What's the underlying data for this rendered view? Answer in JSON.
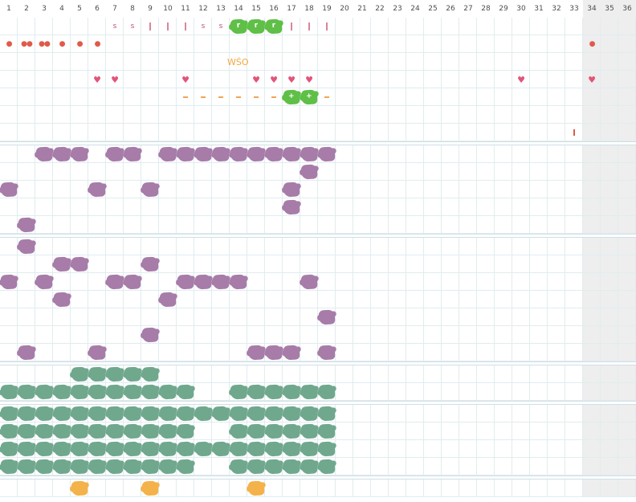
{
  "columns": [
    "1",
    "2",
    "3",
    "4",
    "5",
    "6",
    "7",
    "8",
    "9",
    "10",
    "11",
    "12",
    "13",
    "14",
    "15",
    "16",
    "17",
    "18",
    "19",
    "20",
    "21",
    "22",
    "23",
    "24",
    "25",
    "26",
    "27",
    "28",
    "29",
    "30",
    "31",
    "32",
    "33",
    "34",
    "35",
    "36"
  ],
  "gray_from_column": 34,
  "colors": {
    "purple": "#a77ca9",
    "teal": "#70a88d",
    "orange": "#f4b24a",
    "green": "#5fbf47",
    "heart": "#e25479",
    "drop": "#e05a4a",
    "dash": "#f2a35a",
    "grid": "#e1ecf0"
  },
  "wso_label": "WŚO",
  "row_letters": {
    "row1": [
      {
        "col": 7,
        "type": "text",
        "text": "s"
      },
      {
        "col": 8,
        "type": "text",
        "text": "s"
      },
      {
        "col": 9,
        "type": "bar"
      },
      {
        "col": 10,
        "type": "bar"
      },
      {
        "col": 11,
        "type": "bar"
      },
      {
        "col": 12,
        "type": "text",
        "text": "s"
      },
      {
        "col": 13,
        "type": "text",
        "text": "s"
      },
      {
        "col": 14,
        "type": "green",
        "text": "r"
      },
      {
        "col": 15,
        "type": "green",
        "text": "r"
      },
      {
        "col": 16,
        "type": "green",
        "text": "r"
      },
      {
        "col": 17,
        "type": "bar"
      },
      {
        "col": 18,
        "type": "bar"
      },
      {
        "col": 19,
        "type": "bar"
      }
    ],
    "row2": [
      {
        "col": 1,
        "type": "drop",
        "text": "●"
      },
      {
        "col": 2,
        "type": "drop",
        "text": "●●"
      },
      {
        "col": 3,
        "type": "drop",
        "text": "●●"
      },
      {
        "col": 4,
        "type": "drop",
        "text": "●"
      },
      {
        "col": 5,
        "type": "drop",
        "text": "●"
      },
      {
        "col": 6,
        "type": "drop",
        "text": "●"
      },
      {
        "col": 34,
        "type": "drop",
        "text": "●"
      }
    ],
    "row4": [
      {
        "col": 6,
        "type": "heart",
        "text": "♥"
      },
      {
        "col": 7,
        "type": "heart",
        "text": "♥"
      },
      {
        "col": 11,
        "type": "heart",
        "text": "♥"
      },
      {
        "col": 15,
        "type": "heart",
        "text": "♥"
      },
      {
        "col": 16,
        "type": "heart",
        "text": "♥"
      },
      {
        "col": 17,
        "type": "heart",
        "text": "♥"
      },
      {
        "col": 18,
        "type": "heart",
        "text": "♥"
      },
      {
        "col": 30,
        "type": "heart",
        "text": "♥"
      },
      {
        "col": 34,
        "type": "heart",
        "text": "♥"
      }
    ],
    "row5": [
      {
        "col": 11,
        "type": "dash"
      },
      {
        "col": 12,
        "type": "dash"
      },
      {
        "col": 13,
        "type": "dash"
      },
      {
        "col": 14,
        "type": "dash"
      },
      {
        "col": 15,
        "type": "dash"
      },
      {
        "col": 16,
        "type": "dash"
      },
      {
        "col": 17,
        "type": "green",
        "text": "+"
      },
      {
        "col": 18,
        "type": "green",
        "text": "+"
      },
      {
        "col": 19,
        "type": "dash"
      }
    ],
    "row7": [
      {
        "col": 33,
        "type": "tick"
      }
    ]
  },
  "sections": [
    {
      "rows": [
        {
          "color": "purple",
          "cols": [
            3,
            4,
            5,
            7,
            8,
            10,
            11,
            12,
            13,
            14,
            15,
            16,
            17,
            18,
            19
          ]
        },
        {
          "color": "purple",
          "cols": [
            18
          ]
        },
        {
          "color": "purple",
          "cols": [
            1,
            6,
            9,
            17
          ]
        },
        {
          "color": "purple",
          "cols": [
            17
          ]
        },
        {
          "color": "purple",
          "cols": [
            2
          ]
        }
      ]
    },
    {
      "rows": [
        {
          "color": "purple",
          "cols": [
            2
          ]
        },
        {
          "color": "purple",
          "cols": [
            4,
            5,
            9
          ]
        },
        {
          "color": "purple",
          "cols": [
            1,
            3,
            7,
            8,
            11,
            12,
            13,
            14,
            18
          ]
        },
        {
          "color": "purple",
          "cols": [
            4,
            10
          ]
        },
        {
          "color": "purple",
          "cols": [
            19
          ]
        },
        {
          "color": "purple",
          "cols": [
            9
          ]
        },
        {
          "color": "purple",
          "cols": [
            2,
            6,
            15,
            16,
            17,
            19
          ]
        }
      ]
    },
    {
      "rows": [
        {
          "color": "teal",
          "cols": [
            5,
            6,
            7,
            8,
            9
          ]
        },
        {
          "color": "teal",
          "cols": [
            1,
            2,
            3,
            4,
            5,
            6,
            7,
            8,
            9,
            10,
            11,
            14,
            15,
            16,
            17,
            18,
            19
          ]
        }
      ]
    },
    {
      "rows": [
        {
          "color": "teal",
          "cols": [
            1,
            2,
            3,
            4,
            5,
            6,
            7,
            8,
            9,
            10,
            11,
            12,
            13,
            14,
            15,
            16,
            17,
            18,
            19
          ]
        },
        {
          "color": "teal",
          "cols": [
            1,
            2,
            3,
            4,
            5,
            6,
            7,
            8,
            9,
            10,
            11,
            14,
            15,
            16,
            17,
            18,
            19
          ]
        },
        {
          "color": "teal",
          "cols": [
            1,
            2,
            3,
            4,
            5,
            6,
            7,
            8,
            9,
            10,
            11,
            12,
            13,
            14,
            15,
            16,
            17,
            18,
            19
          ]
        },
        {
          "color": "teal",
          "cols": [
            1,
            2,
            3,
            4,
            5,
            6,
            7,
            8,
            9,
            10,
            11,
            14,
            15,
            16,
            17,
            18,
            19
          ]
        }
      ]
    },
    {
      "rows": [
        {
          "color": "orange",
          "cols": [
            5,
            9,
            15
          ]
        }
      ]
    }
  ]
}
